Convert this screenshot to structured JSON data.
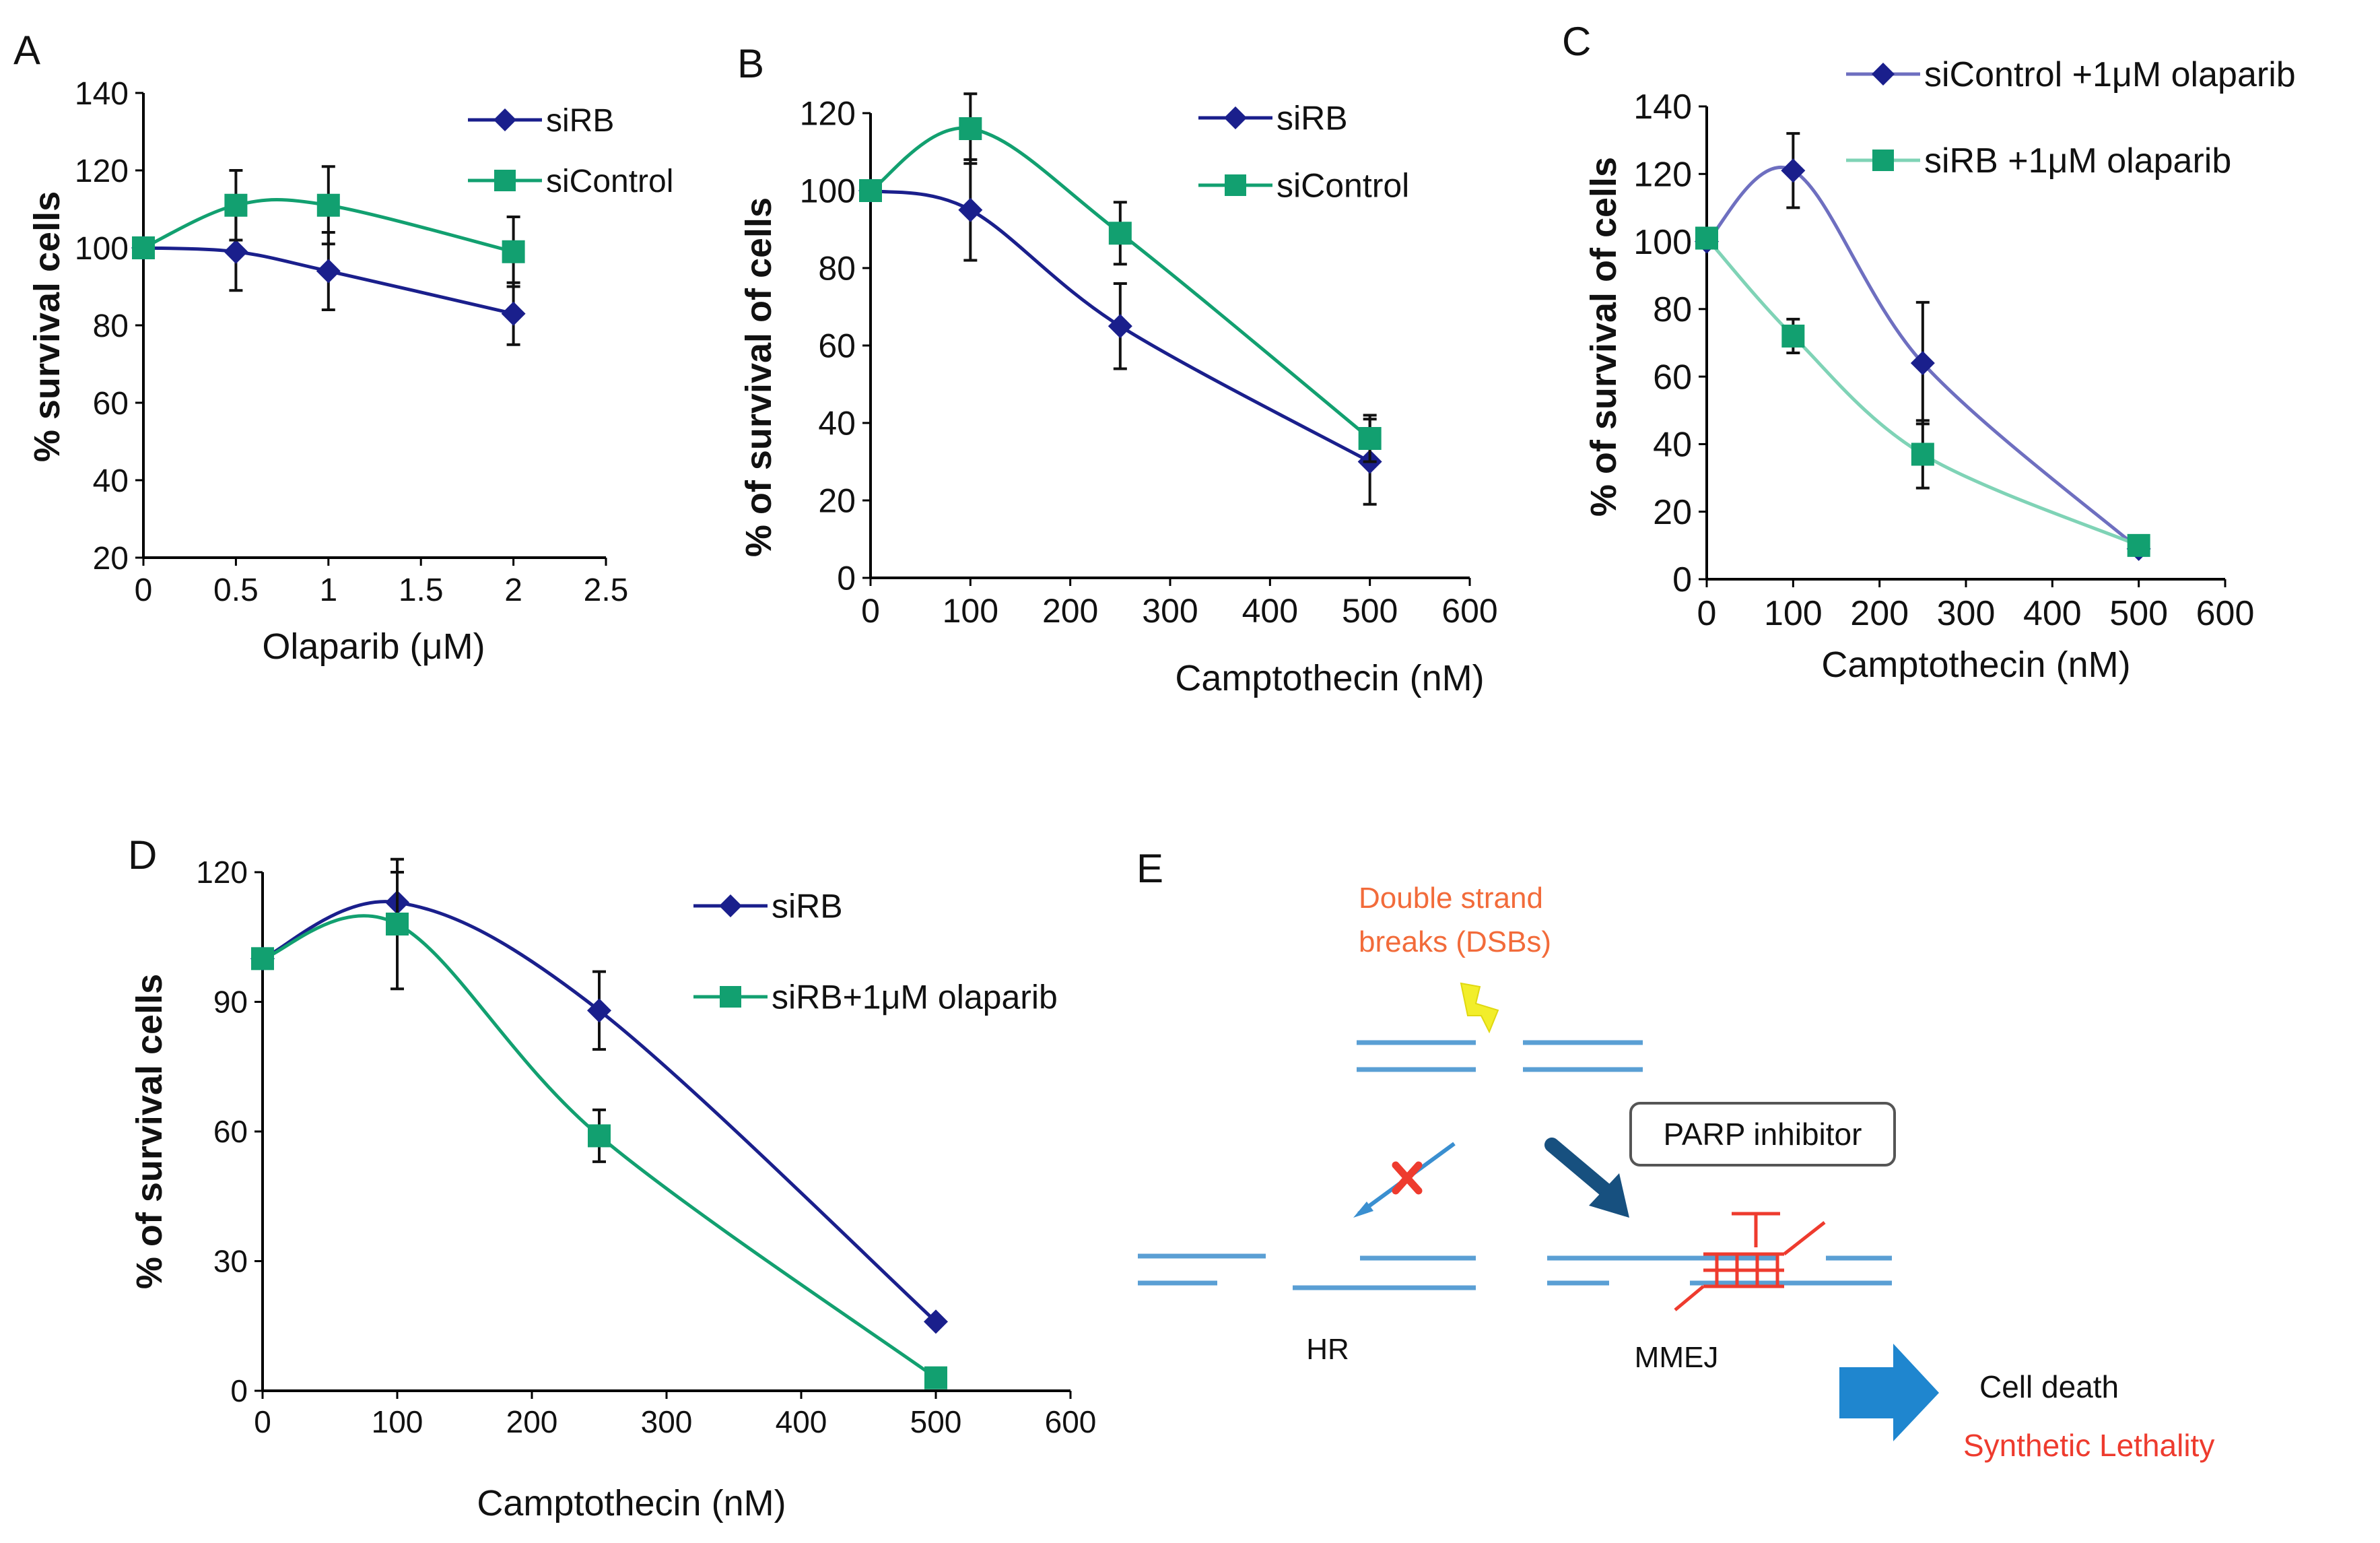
{
  "colors": {
    "siRB": "#1a1f8c",
    "siControl": "#12a070",
    "axis": "#000000",
    "c_siControl_line": "#6e6fc0",
    "c_siRB_line": "#7fd3b6",
    "dna": "#5a9fd4",
    "red": "#ee3b2e",
    "orange": "#f26b3a",
    "navy_arrow": "#17507f",
    "blue_arrow": "#1f86cf",
    "bolt": "#f2ee2a"
  },
  "chart_data": [
    {
      "panel": "A",
      "type": "line",
      "xlabel": "Olaparib (μM)",
      "ylabel": "% survival cells",
      "xlim": [
        0,
        2.5
      ],
      "ylim": [
        20,
        140
      ],
      "xticks": [
        0,
        0.5,
        1,
        1.5,
        2,
        2.5
      ],
      "xtick_labels": [
        "0",
        "0.5",
        "1",
        "1.5",
        "2",
        "2.5"
      ],
      "yticks": [
        20,
        40,
        60,
        80,
        100,
        120,
        140
      ],
      "ytick_labels": [
        "20",
        "40",
        "60",
        "80",
        "100",
        "120",
        "140"
      ],
      "legend_position": "top-right",
      "series": [
        {
          "name": "siRB",
          "color_key": "siRB",
          "marker": "diamond",
          "x": [
            0,
            0.5,
            1,
            2
          ],
          "y": [
            100,
            99,
            94,
            83
          ],
          "err": [
            0,
            10,
            10,
            8
          ]
        },
        {
          "name": "siControl",
          "color_key": "siControl",
          "marker": "square",
          "x": [
            0,
            0.5,
            1,
            2
          ],
          "y": [
            100,
            111,
            111,
            99
          ],
          "err": [
            0,
            9,
            10,
            9
          ]
        }
      ]
    },
    {
      "panel": "B",
      "type": "line",
      "xlabel": "Camptothecin (nM)",
      "ylabel": "% of survival of cells",
      "xlim": [
        0,
        600
      ],
      "ylim": [
        0,
        120
      ],
      "xticks": [
        0,
        100,
        200,
        300,
        400,
        500,
        600
      ],
      "xtick_labels": [
        "0",
        "100",
        "200",
        "300",
        "400",
        "500",
        "600"
      ],
      "yticks": [
        0,
        20,
        40,
        60,
        80,
        100,
        120
      ],
      "ytick_labels": [
        "0",
        "20",
        "40",
        "60",
        "80",
        "100",
        "120"
      ],
      "legend_position": "top-right",
      "series": [
        {
          "name": "siRB",
          "color_key": "siRB",
          "marker": "diamond",
          "x": [
            0,
            100,
            250,
            500
          ],
          "y": [
            100,
            95,
            65,
            30
          ],
          "err": [
            0,
            13,
            11,
            11
          ]
        },
        {
          "name": "siControl",
          "color_key": "siControl",
          "marker": "square",
          "x": [
            0,
            100,
            250,
            500
          ],
          "y": [
            100,
            116,
            89,
            36
          ],
          "err": [
            0,
            9,
            8,
            6
          ]
        }
      ]
    },
    {
      "panel": "C",
      "type": "line",
      "xlabel": "Camptothecin (nM)",
      "ylabel": "% of survival of cells",
      "xlim": [
        0,
        600
      ],
      "ylim": [
        0,
        140
      ],
      "xticks": [
        0,
        100,
        200,
        300,
        400,
        500,
        600
      ],
      "xtick_labels": [
        "0",
        "100",
        "200",
        "300",
        "400",
        "500",
        "600"
      ],
      "yticks": [
        0,
        20,
        40,
        60,
        80,
        100,
        120,
        140
      ],
      "ytick_labels": [
        "0",
        "20",
        "40",
        "60",
        "80",
        "100",
        "120",
        "140"
      ],
      "legend_position": "top-right",
      "series": [
        {
          "name": "siControl +1μM olaparib",
          "color_key": "siRB",
          "line_color_key": "c_siControl_line",
          "marker": "diamond",
          "x": [
            0,
            100,
            250,
            500
          ],
          "y": [
            100,
            121,
            64,
            9
          ],
          "err": [
            0,
            11,
            18,
            0
          ]
        },
        {
          "name": "siRB +1μM olaparib",
          "color_key": "siControl",
          "line_color_key": "c_siRB_line",
          "marker": "square",
          "x": [
            0,
            100,
            250,
            500
          ],
          "y": [
            101,
            72,
            37,
            10
          ],
          "err": [
            0,
            5,
            10,
            0
          ]
        }
      ]
    },
    {
      "panel": "D",
      "type": "line",
      "xlabel": "Camptothecin (nM)",
      "ylabel": "% of survival cells",
      "xlim": [
        0,
        600
      ],
      "ylim": [
        0,
        120
      ],
      "xticks": [
        0,
        100,
        200,
        300,
        400,
        500,
        600
      ],
      "xtick_labels": [
        "0",
        "100",
        "200",
        "300",
        "400",
        "500",
        "600"
      ],
      "yticks": [
        0,
        30,
        60,
        90,
        120
      ],
      "ytick_labels": [
        "0",
        "30",
        "60",
        "90",
        "120"
      ],
      "legend_position": "top-right",
      "series": [
        {
          "name": "siRB",
          "color_key": "siRB",
          "marker": "diamond",
          "x": [
            0,
            100,
            250,
            500
          ],
          "y": [
            100,
            113,
            88,
            16
          ],
          "err": [
            0,
            7,
            9,
            0
          ]
        },
        {
          "name": "siRB+1μM olaparib",
          "color_key": "siControl",
          "marker": "square",
          "x": [
            0,
            100,
            250,
            500
          ],
          "y": [
            100,
            108,
            59,
            3
          ],
          "err": [
            0,
            15,
            6,
            0
          ]
        }
      ]
    }
  ],
  "panel_labels": {
    "a": "A",
    "b": "B",
    "c": "C",
    "d": "D",
    "e": "E"
  },
  "diagram": {
    "dsb_line1": "Double strand",
    "dsb_line2": "breaks (DSBs)",
    "parp_inhibitor": "PARP inhibitor",
    "hr": "HR",
    "mmej": "MMEJ",
    "cell_death": "Cell death",
    "synthetic_lethality": "Synthetic Lethality"
  }
}
